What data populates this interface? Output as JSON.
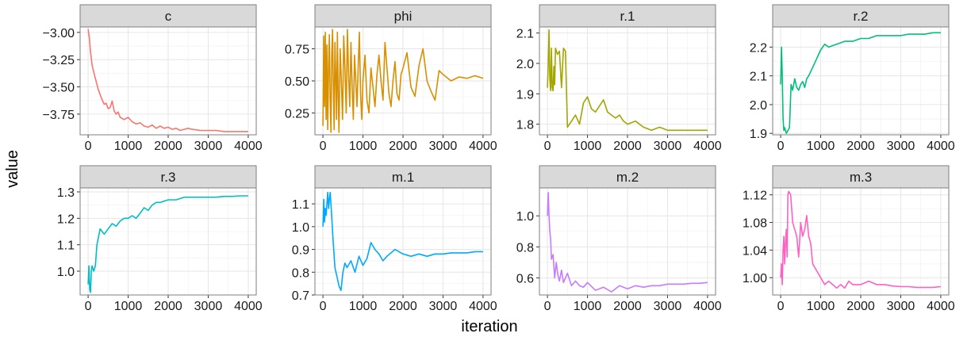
{
  "chart_data": {
    "type": "line",
    "layout": "facet-grid 2x4, free y scales",
    "xlabel": "iteration",
    "ylabel": "value",
    "colors": {
      "panel_background": "#ffffff",
      "panel_border": "#7f7f7f",
      "grid_major": "#e6e6e6",
      "grid_minor": "#f3f3f3",
      "strip_fill": "#d9d9d9",
      "strip_border": "#7f7f7f"
    },
    "facets": [
      {
        "name": "c",
        "color": "#F8766D",
        "xlim": [
          -200,
          4200
        ],
        "ylim": [
          -3.94,
          -2.95
        ],
        "xticks": [
          0,
          1000,
          2000,
          3000,
          4000
        ],
        "xtick_labels": [
          "0",
          "1000",
          "2000",
          "3000",
          "4000"
        ],
        "yticks": [
          -3.0,
          -3.25,
          -3.5,
          -3.75
        ],
        "ytick_labels": [
          "−3.00",
          "−3.25",
          "−3.50",
          "−3.75"
        ],
        "x": [
          0,
          30,
          60,
          100,
          150,
          200,
          250,
          300,
          350,
          400,
          450,
          500,
          550,
          600,
          650,
          700,
          750,
          800,
          900,
          1000,
          1100,
          1200,
          1300,
          1400,
          1500,
          1600,
          1700,
          1800,
          1900,
          2000,
          2100,
          2200,
          2300,
          2400,
          2500,
          2600,
          2800,
          3000,
          3200,
          3400,
          3600,
          3800,
          4000
        ],
        "y": [
          -2.97,
          -3.05,
          -3.18,
          -3.3,
          -3.38,
          -3.45,
          -3.52,
          -3.57,
          -3.62,
          -3.66,
          -3.65,
          -3.7,
          -3.69,
          -3.63,
          -3.72,
          -3.75,
          -3.73,
          -3.78,
          -3.8,
          -3.78,
          -3.82,
          -3.84,
          -3.83,
          -3.86,
          -3.87,
          -3.85,
          -3.88,
          -3.86,
          -3.88,
          -3.87,
          -3.89,
          -3.88,
          -3.9,
          -3.89,
          -3.88,
          -3.89,
          -3.9,
          -3.9,
          -3.9,
          -3.91,
          -3.91,
          -3.91,
          -3.91
        ]
      },
      {
        "name": "phi",
        "color": "#D89000",
        "xlim": [
          -200,
          4200
        ],
        "ylim": [
          0.08,
          0.92
        ],
        "xticks": [
          0,
          1000,
          2000,
          3000,
          4000
        ],
        "xtick_labels": [
          "0",
          "1000",
          "2000",
          "3000",
          "4000"
        ],
        "yticks": [
          0.25,
          0.5,
          0.75
        ],
        "ytick_labels": [
          "0.25",
          "0.50",
          "0.75"
        ],
        "x": [
          0,
          20,
          40,
          60,
          80,
          100,
          120,
          140,
          160,
          180,
          200,
          220,
          240,
          260,
          280,
          300,
          320,
          340,
          360,
          380,
          400,
          430,
          460,
          490,
          520,
          550,
          580,
          610,
          640,
          670,
          700,
          730,
          760,
          790,
          820,
          850,
          880,
          910,
          940,
          970,
          1000,
          1050,
          1100,
          1150,
          1200,
          1250,
          1300,
          1350,
          1400,
          1450,
          1500,
          1550,
          1600,
          1650,
          1700,
          1750,
          1800,
          1850,
          1900,
          1950,
          2000,
          2100,
          2200,
          2300,
          2400,
          2500,
          2600,
          2700,
          2800,
          2900,
          3000,
          3200,
          3400,
          3600,
          3800,
          4000
        ],
        "y": [
          0.15,
          0.85,
          0.3,
          0.88,
          0.2,
          0.78,
          0.12,
          0.6,
          0.86,
          0.35,
          0.1,
          0.7,
          0.9,
          0.45,
          0.12,
          0.8,
          0.55,
          0.2,
          0.88,
          0.4,
          0.1,
          0.75,
          0.5,
          0.2,
          0.85,
          0.6,
          0.25,
          0.9,
          0.55,
          0.3,
          0.8,
          0.45,
          0.2,
          0.7,
          0.5,
          0.3,
          0.6,
          0.88,
          0.4,
          0.2,
          0.5,
          0.7,
          0.35,
          0.25,
          0.6,
          0.45,
          0.3,
          0.55,
          0.7,
          0.5,
          0.35,
          0.8,
          0.6,
          0.4,
          0.3,
          0.5,
          0.65,
          0.4,
          0.35,
          0.55,
          0.6,
          0.72,
          0.45,
          0.38,
          0.62,
          0.75,
          0.5,
          0.42,
          0.35,
          0.58,
          0.55,
          0.5,
          0.53,
          0.52,
          0.54,
          0.52
        ]
      },
      {
        "name": "r.1",
        "color": "#A3A500",
        "xlim": [
          -200,
          4200
        ],
        "ylim": [
          1.765,
          2.12
        ],
        "xticks": [
          0,
          1000,
          2000,
          3000,
          4000
        ],
        "xtick_labels": [
          "0",
          "1000",
          "2000",
          "3000",
          "4000"
        ],
        "yticks": [
          1.8,
          1.9,
          2.0,
          2.1
        ],
        "ytick_labels": [
          "1.8",
          "1.9",
          "2.0",
          "2.1"
        ],
        "x": [
          0,
          20,
          40,
          60,
          80,
          100,
          120,
          140,
          160,
          180,
          200,
          250,
          300,
          350,
          400,
          450,
          500,
          550,
          600,
          700,
          800,
          900,
          1000,
          1100,
          1200,
          1300,
          1400,
          1500,
          1600,
          1700,
          1800,
          1900,
          2000,
          2200,
          2400,
          2600,
          2800,
          3000,
          3200,
          3400,
          3600,
          3800,
          4000
        ],
        "y": [
          1.92,
          2.0,
          2.11,
          1.95,
          1.91,
          2.05,
          1.92,
          1.91,
          1.99,
          1.93,
          2.05,
          2.03,
          2.04,
          1.92,
          2.05,
          2.04,
          1.79,
          1.8,
          1.81,
          1.83,
          1.8,
          1.87,
          1.89,
          1.85,
          1.84,
          1.86,
          1.88,
          1.84,
          1.83,
          1.82,
          1.83,
          1.81,
          1.8,
          1.81,
          1.79,
          1.78,
          1.79,
          1.78,
          1.78,
          1.78,
          1.78,
          1.78,
          1.78
        ]
      },
      {
        "name": "r.2",
        "color": "#00BF7D",
        "xlim": [
          -200,
          4200
        ],
        "ylim": [
          1.895,
          2.27
        ],
        "xticks": [
          0,
          1000,
          2000,
          3000,
          4000
        ],
        "xtick_labels": [
          "0",
          "1000",
          "2000",
          "3000",
          "4000"
        ],
        "yticks": [
          1.9,
          2.0,
          2.1,
          2.2
        ],
        "ytick_labels": [
          "1.9",
          "2.0",
          "2.1",
          "2.2"
        ],
        "x": [
          0,
          20,
          40,
          60,
          80,
          100,
          140,
          180,
          220,
          260,
          300,
          350,
          400,
          450,
          500,
          550,
          600,
          650,
          700,
          800,
          900,
          1000,
          1100,
          1200,
          1400,
          1600,
          1800,
          2000,
          2200,
          2400,
          2600,
          2800,
          3000,
          3200,
          3400,
          3600,
          3800,
          4000
        ],
        "y": [
          2.07,
          2.2,
          2.1,
          1.95,
          1.91,
          1.92,
          1.9,
          1.91,
          1.92,
          2.07,
          2.05,
          2.09,
          2.06,
          2.05,
          2.07,
          2.08,
          2.06,
          2.09,
          2.1,
          2.13,
          2.16,
          2.19,
          2.21,
          2.2,
          2.21,
          2.22,
          2.22,
          2.23,
          2.23,
          2.24,
          2.24,
          2.24,
          2.24,
          2.245,
          2.245,
          2.245,
          2.25,
          2.25
        ]
      },
      {
        "name": "r.3",
        "color": "#00BFC4",
        "xlim": [
          -200,
          4200
        ],
        "ylim": [
          0.91,
          1.315
        ],
        "xticks": [
          0,
          1000,
          2000,
          3000,
          4000
        ],
        "xtick_labels": [
          "0",
          "1000",
          "2000",
          "3000",
          "4000"
        ],
        "yticks": [
          1.0,
          1.1,
          1.2,
          1.3
        ],
        "ytick_labels": [
          "1.0",
          "1.1",
          "1.2",
          "1.3"
        ],
        "x": [
          0,
          20,
          40,
          60,
          80,
          100,
          140,
          180,
          220,
          260,
          300,
          350,
          400,
          500,
          600,
          700,
          800,
          900,
          1000,
          1100,
          1200,
          1300,
          1400,
          1500,
          1600,
          1700,
          1800,
          2000,
          2200,
          2400,
          2600,
          2800,
          3000,
          3200,
          3400,
          3600,
          3800,
          4000
        ],
        "y": [
          0.95,
          1.02,
          0.93,
          0.92,
          1.0,
          1.02,
          1.0,
          1.02,
          1.1,
          1.13,
          1.16,
          1.15,
          1.14,
          1.16,
          1.18,
          1.17,
          1.19,
          1.2,
          1.2,
          1.21,
          1.2,
          1.22,
          1.24,
          1.23,
          1.25,
          1.26,
          1.26,
          1.27,
          1.27,
          1.28,
          1.28,
          1.28,
          1.28,
          1.28,
          1.283,
          1.283,
          1.285,
          1.285
        ]
      },
      {
        "name": "m.1",
        "color": "#00A9FF",
        "xlim": [
          -200,
          4200
        ],
        "ylim": [
          0.7,
          1.17
        ],
        "xticks": [
          0,
          1000,
          2000,
          3000,
          4000
        ],
        "xtick_labels": [
          "0",
          "1000",
          "2000",
          "3000",
          "4000"
        ],
        "yticks": [
          0.7,
          0.8,
          0.9,
          1.0,
          1.1
        ],
        "ytick_labels": [
          "0.7",
          "0.8",
          "0.9",
          "1.0",
          "1.1"
        ],
        "x": [
          0,
          20,
          40,
          60,
          80,
          100,
          120,
          140,
          160,
          180,
          200,
          250,
          300,
          350,
          400,
          450,
          500,
          550,
          600,
          700,
          800,
          900,
          1000,
          1100,
          1200,
          1300,
          1400,
          1500,
          1600,
          1800,
          2000,
          2200,
          2400,
          2600,
          2800,
          3000,
          3200,
          3400,
          3600,
          3800,
          4000
        ],
        "y": [
          1.0,
          1.12,
          1.02,
          1.08,
          1.05,
          1.1,
          1.15,
          1.08,
          1.12,
          1.15,
          1.1,
          0.95,
          0.82,
          0.78,
          0.74,
          0.72,
          0.8,
          0.84,
          0.82,
          0.85,
          0.8,
          0.87,
          0.83,
          0.86,
          0.93,
          0.9,
          0.88,
          0.85,
          0.87,
          0.9,
          0.88,
          0.87,
          0.88,
          0.87,
          0.88,
          0.88,
          0.885,
          0.885,
          0.885,
          0.89,
          0.89
        ]
      },
      {
        "name": "m.2",
        "color": "#C77CFF",
        "xlim": [
          -200,
          4200
        ],
        "ylim": [
          0.49,
          1.18
        ],
        "xticks": [
          0,
          1000,
          2000,
          3000,
          4000
        ],
        "xtick_labels": [
          "0",
          "1000",
          "2000",
          "3000",
          "4000"
        ],
        "yticks": [
          0.6,
          0.8,
          1.0
        ],
        "ytick_labels": [
          "0.6",
          "0.8",
          "1.0"
        ],
        "x": [
          0,
          20,
          40,
          60,
          80,
          100,
          140,
          180,
          220,
          260,
          300,
          350,
          400,
          450,
          500,
          600,
          700,
          800,
          900,
          1000,
          1200,
          1400,
          1600,
          1800,
          2000,
          2200,
          2400,
          2600,
          2800,
          3000,
          3200,
          3400,
          3600,
          3800,
          4000
        ],
        "y": [
          1.0,
          1.15,
          1.0,
          0.9,
          0.85,
          0.72,
          0.75,
          0.6,
          0.7,
          0.62,
          0.58,
          0.65,
          0.57,
          0.6,
          0.63,
          0.55,
          0.58,
          0.55,
          0.54,
          0.57,
          0.52,
          0.54,
          0.51,
          0.55,
          0.53,
          0.55,
          0.54,
          0.55,
          0.55,
          0.56,
          0.56,
          0.56,
          0.565,
          0.565,
          0.57
        ]
      },
      {
        "name": "m.3",
        "color": "#FF61C3",
        "xlim": [
          -200,
          4200
        ],
        "ylim": [
          0.975,
          1.13
        ],
        "xticks": [
          0,
          1000,
          2000,
          3000,
          4000
        ],
        "xtick_labels": [
          "0",
          "1000",
          "2000",
          "3000",
          "4000"
        ],
        "yticks": [
          1.0,
          1.04,
          1.08,
          1.12
        ],
        "ytick_labels": [
          "1.00",
          "1.04",
          "1.08",
          "1.12"
        ],
        "x": [
          0,
          20,
          40,
          60,
          80,
          100,
          120,
          140,
          160,
          180,
          200,
          250,
          300,
          350,
          400,
          450,
          500,
          550,
          600,
          650,
          700,
          750,
          800,
          900,
          1000,
          1100,
          1200,
          1300,
          1400,
          1500,
          1600,
          1700,
          1800,
          2000,
          2200,
          2400,
          2600,
          2800,
          3000,
          3200,
          3400,
          3600,
          3800,
          4000
        ],
        "y": [
          1.0,
          1.02,
          0.99,
          1.04,
          1.06,
          1.02,
          1.05,
          1.07,
          1.03,
          1.12,
          1.125,
          1.12,
          1.08,
          1.07,
          1.06,
          1.03,
          1.08,
          1.06,
          1.07,
          1.09,
          1.06,
          1.05,
          1.02,
          1.01,
          1.0,
          0.99,
          0.995,
          0.99,
          0.985,
          0.99,
          0.985,
          0.995,
          0.99,
          0.99,
          0.995,
          0.99,
          0.99,
          0.988,
          0.987,
          0.987,
          0.986,
          0.986,
          0.986,
          0.987
        ]
      }
    ]
  }
}
